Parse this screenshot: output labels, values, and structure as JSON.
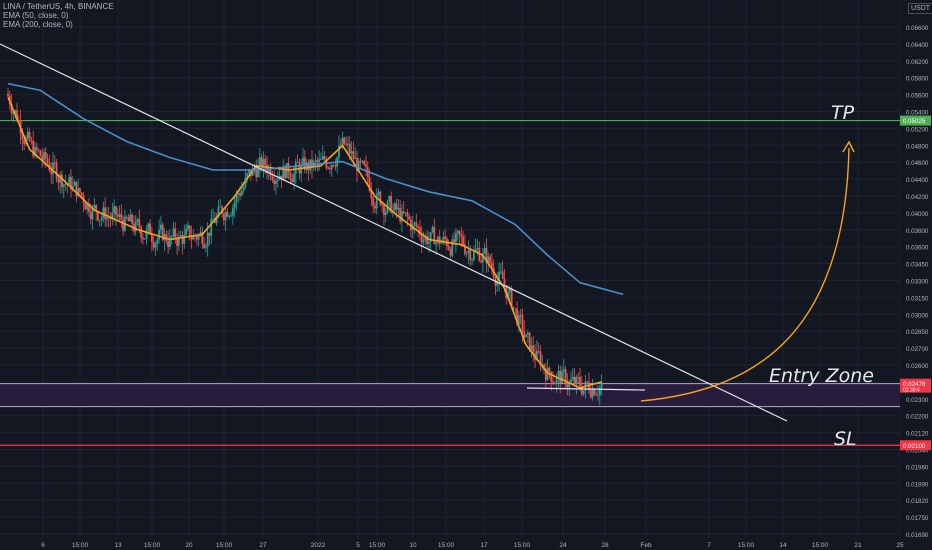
{
  "header": {
    "symbol_line": "LINA / TetherUS, 4h, BINANCE",
    "ema50_label": "EMA (50, close, 0)",
    "ema200_label": "EMA (200, close, 0)"
  },
  "price_axis": {
    "currency": "USDT",
    "ticks": [
      "0.06600",
      "0.06400",
      "0.06200",
      "0.05800",
      "0.05600",
      "0.05400",
      "0.05200",
      "0.04800",
      "0.04600",
      "0.04400",
      "0.04200",
      "0.04000",
      "0.03800",
      "0.03600",
      "0.03450",
      "0.03300",
      "0.03150",
      "0.03000",
      "0.02850",
      "0.02700",
      "0.02600",
      "0.02400",
      "0.02300",
      "0.02200",
      "0.02120",
      "0.02040",
      "0.01960",
      "0.01890",
      "0.01820",
      "0.01750",
      "0.01690"
    ],
    "tp_badge": "0.05025",
    "entry_badge": "0.02478",
    "entry_badge_sub": "02:30:4",
    "sl_badge": "0.02100"
  },
  "time_axis": {
    "ticks": [
      "6",
      "15:00",
      "13",
      "15:00",
      "20",
      "15:00",
      "27",
      "2022",
      "5",
      "15:00",
      "10",
      "15:00",
      "17",
      "15:00",
      "24",
      "28",
      "Feb",
      "7",
      "15:00",
      "14",
      "15:00",
      "21",
      "25"
    ]
  },
  "annotations": {
    "tp": "TP",
    "entry_zone": "Entry Zone",
    "sl": "SL"
  },
  "colors": {
    "background": "#131722",
    "grid": "#1f2331",
    "candle_up": "#26a69a",
    "candle_down": "#ef5350",
    "ema50": "#f7a21b",
    "ema200": "#4a90c8",
    "tp_line": "#4caf50",
    "sl_line": "#f23645",
    "entry_zone_fill": "#2b1d3f",
    "trendline": "#e0e3eb",
    "projection": "#f7a21b"
  },
  "chart_data": {
    "type": "candlestick",
    "title": "LINA / TetherUS, 4h, BINANCE",
    "x_range": [
      "2021-12-05",
      "2022-02-25"
    ],
    "y_range": [
      0.0165,
      0.068
    ],
    "series": [
      {
        "name": "EMA (50, close, 0)",
        "type": "line",
        "x": [
          "2021-12-05",
          "2021-12-07",
          "2021-12-10",
          "2021-12-13",
          "2021-12-17",
          "2021-12-20",
          "2021-12-23",
          "2021-12-26",
          "2021-12-28",
          "2021-12-31",
          "2022-01-03",
          "2022-01-05",
          "2022-01-08",
          "2022-01-10",
          "2022-01-13",
          "2022-01-16",
          "2022-01-18",
          "2022-01-20",
          "2022-01-22",
          "2022-01-24",
          "2022-01-27",
          "2022-01-29"
        ],
        "values": [
          0.0535,
          0.0465,
          0.043,
          0.0395,
          0.0375,
          0.0365,
          0.037,
          0.041,
          0.0445,
          0.044,
          0.0445,
          0.047,
          0.041,
          0.039,
          0.0365,
          0.036,
          0.035,
          0.032,
          0.0275,
          0.0255,
          0.0245,
          0.0249
        ]
      },
      {
        "name": "EMA (200, close, 0)",
        "type": "line",
        "x": [
          "2021-12-05",
          "2021-12-08",
          "2021-12-12",
          "2021-12-16",
          "2021-12-20",
          "2021-12-24",
          "2021-12-28",
          "2022-01-01",
          "2022-01-05",
          "2022-01-09",
          "2022-01-13",
          "2022-01-17",
          "2022-01-21",
          "2022-01-24",
          "2022-01-27",
          "2022-01-31"
        ],
        "values": [
          0.0555,
          0.0545,
          0.0505,
          0.0475,
          0.0455,
          0.044,
          0.044,
          0.0445,
          0.045,
          0.043,
          0.0415,
          0.0405,
          0.038,
          0.035,
          0.0325,
          0.0315
        ]
      }
    ],
    "price_summary": {
      "high": 0.06,
      "low": 0.0198,
      "last": 0.02478
    },
    "levels": [
      {
        "label": "TP",
        "price": 0.05025
      },
      {
        "label": "Entry Zone top",
        "price": 0.02478
      },
      {
        "label": "Entry Zone bottom",
        "price": 0.0233
      },
      {
        "label": "SL",
        "price": 0.021
      }
    ]
  }
}
